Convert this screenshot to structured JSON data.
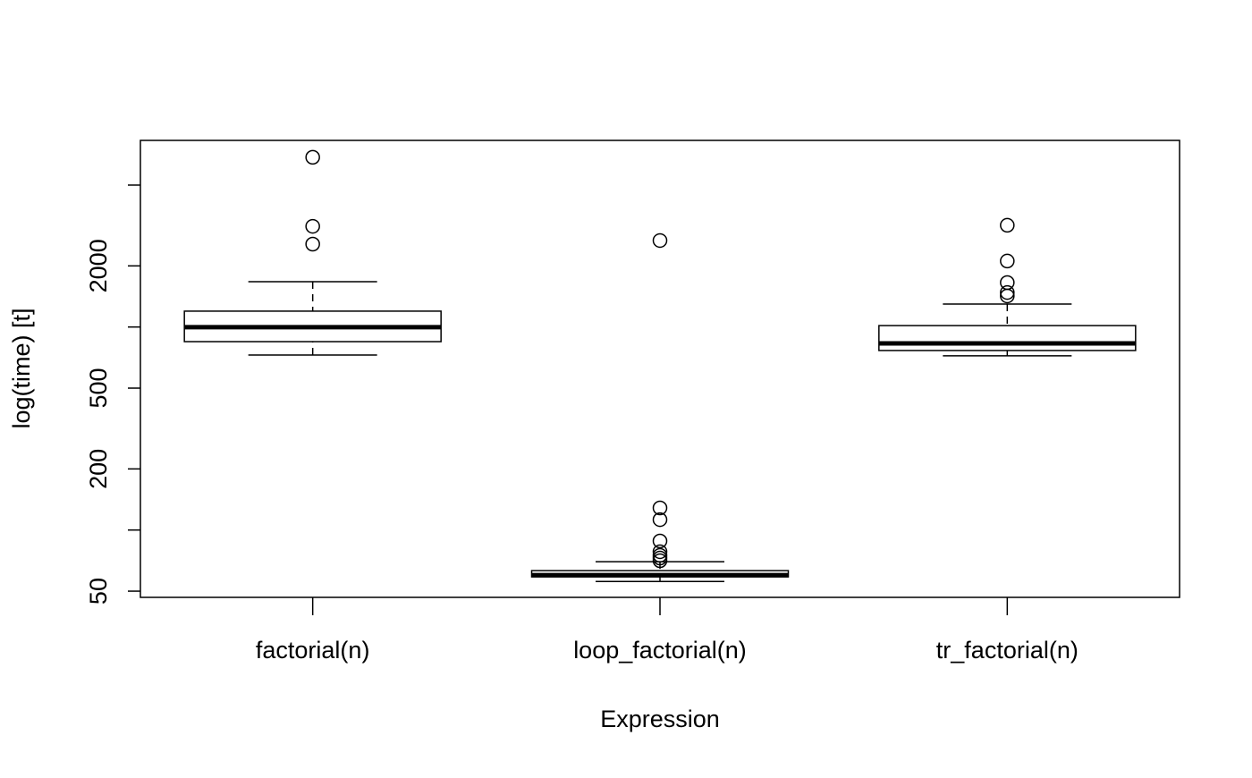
{
  "chart_data": {
    "type": "box",
    "y_label": "log(time) [t]",
    "x_label": "Expression",
    "categories": [
      "factorial(n)",
      "loop_factorial(n)",
      "tr_factorial(n)"
    ],
    "boxes": [
      {
        "min": 728,
        "q1": 847,
        "median": 998,
        "q3": 1197,
        "max": 1671,
        "outliers": [
          2560,
          3133,
          6855
        ]
      },
      {
        "min": 55.8,
        "q1": 58.8,
        "median": 60,
        "q3": 63.1,
        "max": 69.8,
        "outliers": [
          70.6,
          72.8,
          75.1,
          78.2,
          88.3,
          112.5,
          128.5,
          2667
        ]
      },
      {
        "min": 721,
        "q1": 766,
        "median": 830,
        "q3": 1016,
        "max": 1297,
        "outliers": [
          1422,
          1479,
          1655,
          2113,
          3170
        ]
      }
    ],
    "color": "#000000",
    "log_y": true,
    "ylim": [
      46.6,
      8300
    ],
    "yticks": [
      50,
      {
        "value": 100,
        "label": null
      },
      200,
      500,
      {
        "value": 1000,
        "label": null
      },
      2000,
      {
        "value": 5000,
        "label": null
      }
    ]
  }
}
